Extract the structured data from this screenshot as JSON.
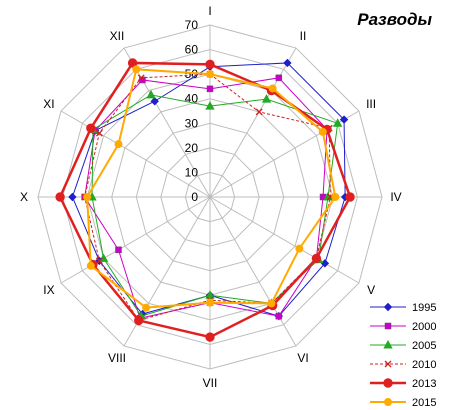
{
  "chart_data": {
    "type": "radar",
    "title": "Разводы",
    "categories": [
      "I",
      "II",
      "III",
      "IV",
      "V",
      "VI",
      "VII",
      "VIII",
      "IX",
      "X",
      "XI",
      "XII"
    ],
    "rlim": [
      0,
      70
    ],
    "ticks": [
      0,
      10,
      20,
      30,
      40,
      50,
      60,
      70
    ],
    "grid": true,
    "legend_position": "bottom-right",
    "series": [
      {
        "name": "1995",
        "color": "#1f1fcc",
        "marker": "diamond",
        "dash": "solid",
        "width": 1,
        "values": [
          53,
          63,
          63,
          55,
          54,
          56,
          40,
          55,
          52,
          56,
          54,
          45
        ]
      },
      {
        "name": "2000",
        "color": "#cc00cc",
        "marker": "square",
        "dash": "solid",
        "width": 1,
        "values": [
          44,
          56,
          55,
          46,
          50,
          56,
          43,
          57,
          43,
          51,
          54,
          55
        ]
      },
      {
        "name": "2005",
        "color": "#22aa22",
        "marker": "triangle",
        "dash": "solid",
        "width": 1,
        "values": [
          37,
          46,
          60,
          48,
          51,
          50,
          40,
          56,
          50,
          48,
          55,
          48
        ]
      },
      {
        "name": "2010",
        "color": "#cc2222",
        "marker": "x",
        "dash": "dashed",
        "width": 1,
        "values": [
          50,
          40,
          56,
          49,
          50,
          50,
          42,
          58,
          52,
          51,
          52,
          56
        ]
      },
      {
        "name": "2013",
        "color": "#e02020",
        "marker": "circle",
        "dash": "solid",
        "width": 2.5,
        "values": [
          54,
          50,
          55,
          57,
          50,
          51,
          57,
          58,
          55,
          61,
          56,
          63
        ]
      },
      {
        "name": "2015",
        "color": "#ffaa00",
        "marker": "circle",
        "dash": "solid",
        "width": 2,
        "values": [
          50,
          51,
          53,
          51,
          42,
          50,
          43,
          52,
          56,
          50,
          43,
          60
        ]
      }
    ]
  }
}
